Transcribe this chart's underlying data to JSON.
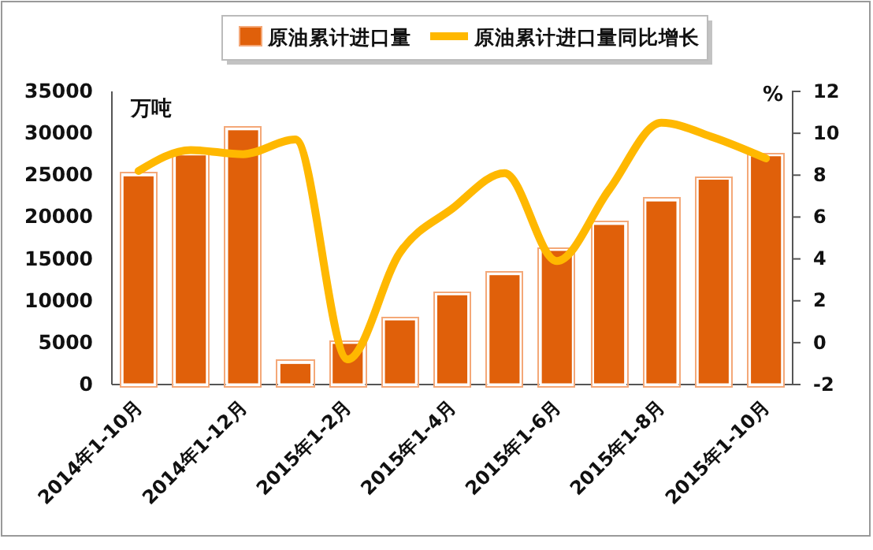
{
  "chart_data": {
    "type": "bar",
    "categories": [
      "2014年1-10月",
      null,
      "2014年1-12月",
      null,
      "2015年1-2月",
      null,
      "2015年1-4月",
      null,
      "2015年1-6月",
      null,
      "2015年1-8月",
      null,
      "2015年1-10月"
    ],
    "series": [
      {
        "name": "原油累计进口量",
        "color": "#e0600a",
        "values": [
          25000,
          27500,
          30500,
          2600,
          5000,
          7800,
          10800,
          13200,
          16100,
          19200,
          22000,
          24600,
          27400
        ]
      },
      {
        "name": "原油累计进口量同比增长",
        "type": "line",
        "axis": "y2",
        "color": "#ffb800",
        "values": [
          8.2,
          9.2,
          9.0,
          9.7,
          -0.8,
          4.3,
          6.4,
          8.1,
          3.9,
          7.3,
          10.5,
          9.8,
          8.8
        ]
      }
    ],
    "ylabel": "万吨",
    "y2label": "%",
    "ylim": [
      0,
      35000
    ],
    "yticks": [
      0,
      5000,
      10000,
      15000,
      20000,
      25000,
      30000,
      35000
    ],
    "y2lim": [
      -2,
      12
    ],
    "y2ticks": [
      -2,
      0,
      2,
      4,
      6,
      8,
      10,
      12
    ],
    "legend": "top",
    "grid": false
  }
}
